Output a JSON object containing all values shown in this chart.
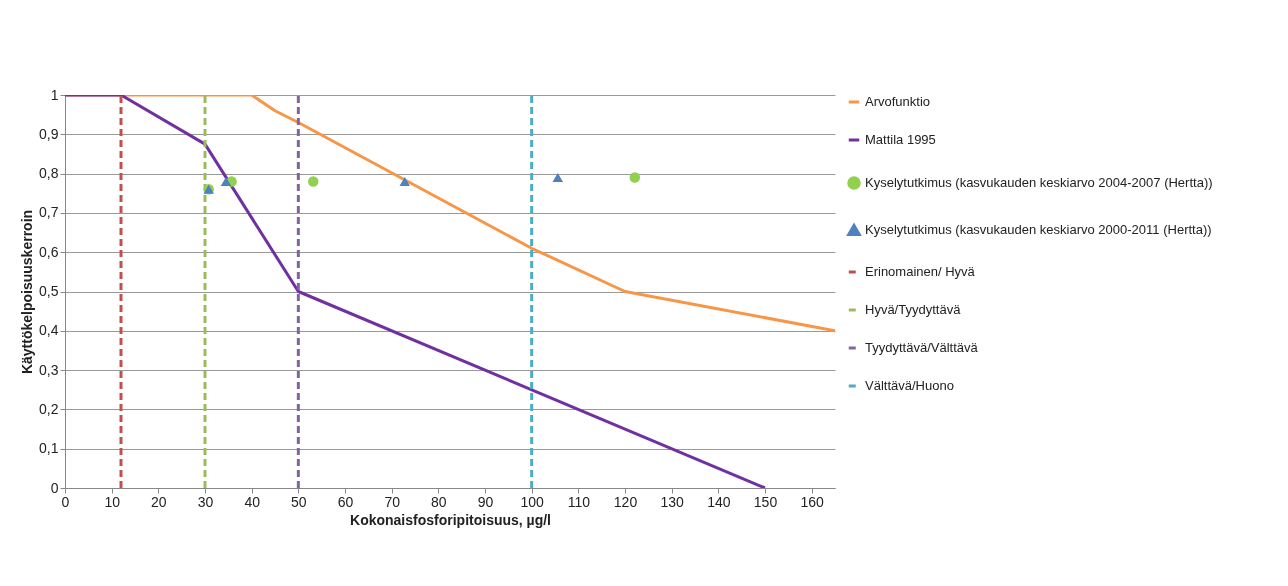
{
  "chart_data": {
    "type": "line",
    "xlabel": "Kokonaisfosforipitoisuus, µg/l",
    "ylabel": "Käyttökelpoisuuskerroin",
    "xlim": [
      0,
      165
    ],
    "xticks": [
      0,
      10,
      20,
      30,
      40,
      50,
      60,
      70,
      80,
      90,
      100,
      110,
      120,
      130,
      140,
      150,
      160
    ],
    "ylim": [
      0,
      1
    ],
    "yticks": [
      0,
      {
        "value": 0.1,
        "label": "0,1"
      },
      {
        "value": 0.2,
        "label": "0,2"
      },
      {
        "value": 0.3,
        "label": "0,3"
      },
      {
        "value": 0.4,
        "label": "0,4"
      },
      {
        "value": 0.5,
        "label": "0,5"
      },
      {
        "value": 0.6,
        "label": "0,6"
      },
      {
        "value": 0.7,
        "label": "0,7"
      },
      {
        "value": 0.8,
        "label": "0,8"
      },
      {
        "value": 0.9,
        "label": "0,9"
      },
      1
    ],
    "grid": "y",
    "legend": "right",
    "series": [
      {
        "name": "Arvofunktio",
        "color": "#f79646",
        "x": [
          0,
          40,
          45,
          50,
          100,
          120,
          165
        ],
        "values": [
          1,
          1,
          0.96,
          0.93,
          0.61,
          0.5,
          0.4
        ]
      },
      {
        "name": "Mattila 1995",
        "color": "#7030a0",
        "x": [
          0,
          12,
          30,
          50,
          150
        ],
        "values": [
          1,
          1,
          0.875,
          0.5,
          0
        ]
      },
      {
        "name": "Kyselytutkimus (kasvukauden keskiarvo 2004-2007 (Hertta))",
        "type": "scatter",
        "marker": "circle",
        "color": "#92d050",
        "x": [
          30.8,
          35.7,
          53.2,
          122.1
        ],
        "values": [
          0.76,
          0.78,
          0.78,
          0.79
        ]
      },
      {
        "name": "Kyselytutkimus (kasvukauden keskiarvo 2000-2011 (Hertta))",
        "type": "scatter",
        "marker": "triangle",
        "color": "#4f81bd",
        "x": [
          30.8,
          34.5,
          72.8,
          105.6
        ],
        "values": [
          0.76,
          0.78,
          0.78,
          0.79
        ]
      },
      {
        "name": "Erinomainen/ Hyvä",
        "line_style": "dashed",
        "color": "#c0504d",
        "x": [
          12,
          12
        ],
        "values": [
          0,
          1
        ]
      },
      {
        "name": "Hyvä/Tyydyttävä",
        "line_style": "dashed",
        "color": "#9bbb59",
        "x": [
          30,
          30
        ],
        "values": [
          0,
          1
        ]
      },
      {
        "name": "Tyydyttävä/Välttävä",
        "line_style": "dashed",
        "color": "#8064a2",
        "x": [
          50,
          50
        ],
        "values": [
          0,
          1
        ]
      },
      {
        "name": "Välttävä/Huono",
        "line_style": "dashed",
        "color": "#4bacc6",
        "x": [
          100,
          100
        ],
        "values": [
          0,
          1
        ]
      }
    ]
  }
}
